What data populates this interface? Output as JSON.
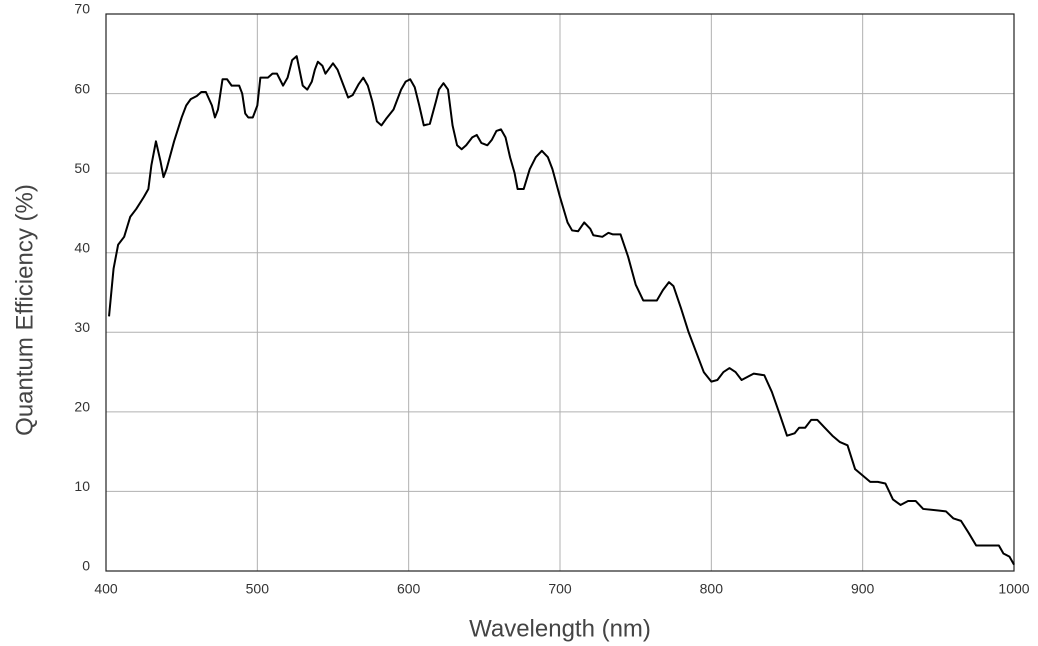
{
  "chart_data": {
    "type": "line",
    "xlabel": "Wavelength (nm)",
    "ylabel": "Quantum Efficiency (%)",
    "xlim": [
      400,
      1000
    ],
    "ylim": [
      0,
      70
    ],
    "xticks": [
      400,
      500,
      600,
      700,
      800,
      900,
      1000
    ],
    "yticks": [
      0,
      10,
      20,
      30,
      40,
      50,
      60,
      70
    ],
    "grid": true,
    "series": [
      {
        "color": "#000000",
        "x": [
          402,
          405,
          408,
          412,
          416,
          420,
          425,
          428,
          430,
          433,
          436,
          438,
          440,
          445,
          450,
          453,
          456,
          460,
          463,
          466,
          470,
          472,
          474,
          477,
          480,
          483,
          488,
          490,
          492,
          494,
          497,
          500,
          502,
          507,
          510,
          513,
          517,
          520,
          523,
          526,
          530,
          533,
          536,
          538,
          540,
          543,
          545,
          550,
          553,
          557,
          560,
          563,
          567,
          570,
          573,
          576,
          579,
          582,
          585,
          590,
          595,
          598,
          601,
          604,
          607,
          610,
          614,
          618,
          620,
          623,
          626,
          629,
          632,
          635,
          638,
          642,
          645,
          648,
          652,
          655,
          658,
          661,
          664,
          667,
          670,
          672,
          676,
          680,
          684,
          688,
          692,
          695,
          700,
          705,
          708,
          712,
          716,
          720,
          722,
          728,
          732,
          735,
          740,
          745,
          750,
          755,
          760,
          764,
          768,
          772,
          775,
          780,
          785,
          790,
          795,
          800,
          804,
          808,
          812,
          816,
          820,
          825,
          828,
          835,
          840,
          845,
          850,
          855,
          858,
          862,
          866,
          870,
          875,
          880,
          885,
          890,
          895,
          900,
          905,
          910,
          915,
          920,
          925,
          930,
          935,
          940,
          950,
          955,
          960,
          965,
          970,
          975,
          980,
          985,
          990,
          993,
          997,
          1000
        ],
        "values": [
          32,
          38,
          41,
          42,
          44.5,
          45.5,
          47,
          48,
          51,
          54,
          51.5,
          49.5,
          50.5,
          54,
          57,
          58.5,
          59.3,
          59.7,
          60.2,
          60.2,
          58.5,
          57,
          58,
          61.8,
          61.8,
          61,
          61,
          60,
          57.5,
          57,
          57,
          58.5,
          62,
          62,
          62.5,
          62.5,
          61,
          62,
          64.2,
          64.7,
          61,
          60.5,
          61.5,
          63,
          64,
          63.5,
          62.5,
          63.8,
          63,
          61,
          59.5,
          59.8,
          61.2,
          62,
          61,
          59,
          56.5,
          56,
          56.8,
          58,
          60.5,
          61.5,
          61.8,
          60.8,
          58.5,
          56,
          56.2,
          59,
          60.5,
          61.3,
          60.5,
          56,
          53.5,
          53,
          53.5,
          54.5,
          54.8,
          53.8,
          53.5,
          54.2,
          55.3,
          55.5,
          54.5,
          52,
          50,
          48,
          48,
          50.5,
          52,
          52.8,
          52,
          50.5,
          47,
          43.8,
          42.8,
          42.7,
          43.8,
          43,
          42.2,
          42,
          42.5,
          42.3,
          42.3,
          39.5,
          36,
          34,
          34,
          34,
          35.3,
          36.3,
          35.8,
          33,
          30,
          27.5,
          25,
          23.8,
          24,
          25,
          25.5,
          25,
          24,
          24.5,
          24.8,
          24.6,
          22.5,
          19.8,
          17,
          17.3,
          18,
          18,
          19,
          19,
          18,
          17,
          16.2,
          15.8,
          12.8,
          12,
          11.2,
          11.2,
          11,
          9,
          8.3,
          8.8,
          8.8,
          7.8,
          7.6,
          7.5,
          6.6,
          6.3,
          4.8,
          3.2,
          3.2,
          3.2,
          3.2,
          2.2,
          1.8,
          0.8
        ]
      }
    ]
  }
}
